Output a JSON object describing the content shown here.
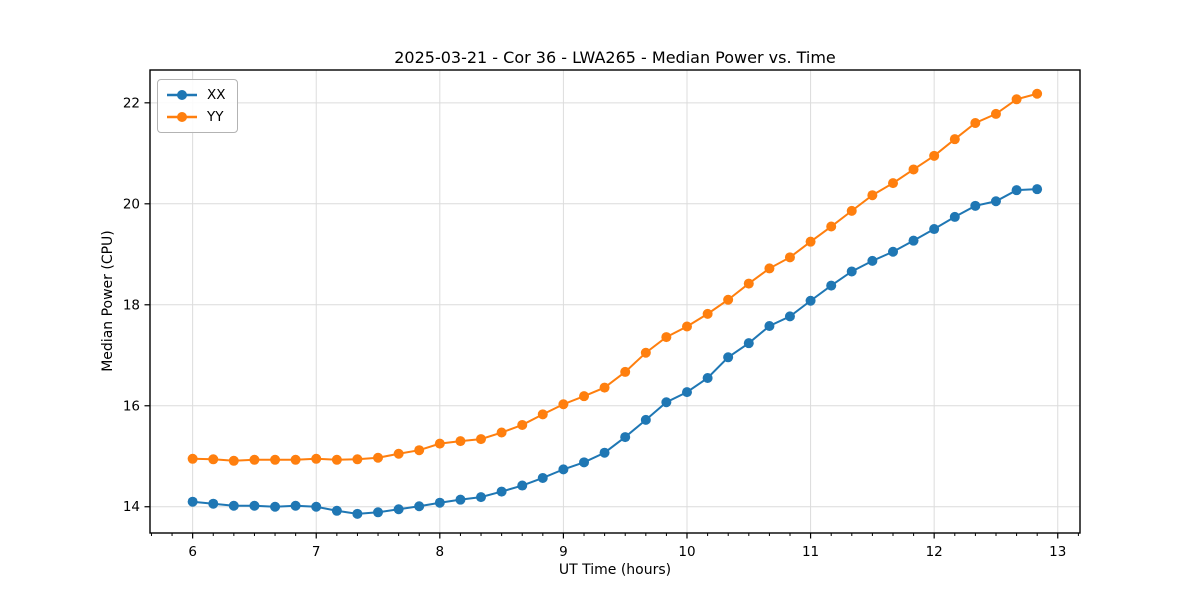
{
  "chart_data": {
    "type": "line",
    "title": "2025-03-21 - Cor 36 - LWA265 - Median Power vs. Time",
    "xlabel": "UT Time (hours)",
    "ylabel": "Median Power (CPU)",
    "xlim": [
      5.655,
      13.18
    ],
    "ylim": [
      13.48,
      22.65
    ],
    "xticks": [
      6,
      7,
      8,
      9,
      10,
      11,
      12,
      13
    ],
    "yticks": [
      14,
      16,
      18,
      20,
      22
    ],
    "x_minor_step": 0.16667,
    "grid": true,
    "grid_color": "#dcdcdc",
    "spine_color": "#000000",
    "legend_position": "upper left",
    "marker": "circle",
    "x": [
      6,
      6.167,
      6.333,
      6.5,
      6.667,
      6.833,
      7,
      7.167,
      7.333,
      7.5,
      7.667,
      7.833,
      8,
      8.167,
      8.333,
      8.5,
      8.667,
      8.833,
      9,
      9.167,
      9.333,
      9.5,
      9.667,
      9.833,
      10,
      10.167,
      10.333,
      10.5,
      10.667,
      10.833,
      11,
      11.167,
      11.333,
      11.5,
      11.667,
      11.833,
      12,
      12.167,
      12.333,
      12.5,
      12.667,
      12.833
    ],
    "series": [
      {
        "name": "XX",
        "color": "#1f77b4",
        "values": [
          14.1,
          14.06,
          14.02,
          14.02,
          14.0,
          14.02,
          14.0,
          13.92,
          13.86,
          13.89,
          13.95,
          14.01,
          14.08,
          14.14,
          14.19,
          14.3,
          14.42,
          14.57,
          14.74,
          14.88,
          15.07,
          15.38,
          15.72,
          16.07,
          16.27,
          16.55,
          16.96,
          17.24,
          17.58,
          17.77,
          18.08,
          18.38,
          18.66,
          18.87,
          19.05,
          19.27,
          19.5,
          19.74,
          19.96,
          20.05,
          20.27,
          20.29
        ]
      },
      {
        "name": "YY",
        "color": "#ff7f0e",
        "values": [
          14.95,
          14.94,
          14.91,
          14.93,
          14.93,
          14.93,
          14.95,
          14.93,
          14.94,
          14.97,
          15.05,
          15.12,
          15.25,
          15.3,
          15.34,
          15.47,
          15.62,
          15.83,
          16.03,
          16.19,
          16.36,
          16.67,
          17.05,
          17.36,
          17.57,
          17.82,
          18.1,
          18.42,
          18.72,
          18.94,
          19.25,
          19.55,
          19.86,
          20.17,
          20.41,
          20.68,
          20.95,
          21.28,
          21.6,
          21.78,
          22.07,
          22.18
        ]
      }
    ]
  }
}
